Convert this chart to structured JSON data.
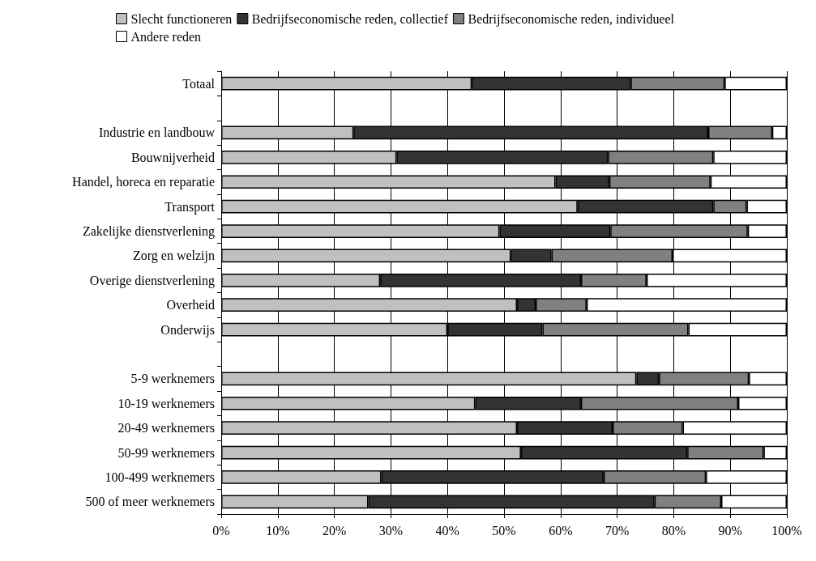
{
  "chart_data": {
    "type": "bar",
    "orientation": "horizontal",
    "stacked": true,
    "categories": [
      "Totaal",
      null,
      "Industrie en landbouw",
      "Bouwnijverheid",
      "Handel, horeca en reparatie",
      "Transport",
      "Zakelijke dienstverlening",
      "Zorg en welzijn",
      "Overige dienstverlening",
      "Overheid",
      "Onderwijs",
      null,
      "5-9 werknemers",
      "10-19 werknemers",
      "20-49 werknemers",
      "50-99 werknemers",
      "100-499 werknemers",
      "500 of meer werknemers"
    ],
    "series": [
      {
        "name": "Slecht functioneren",
        "color": "#c0c0c0",
        "values": [
          44.3,
          null,
          23.4,
          31.0,
          59.1,
          63.0,
          49.2,
          51.2,
          28.1,
          52.3,
          40.0,
          null,
          73.4,
          44.9,
          52.3,
          53.0,
          28.3,
          26.0
        ]
      },
      {
        "name": "Bedrijfseconomische reden, collectief",
        "color": "#333333",
        "values": [
          28.1,
          null,
          62.7,
          37.4,
          9.5,
          24.0,
          19.6,
          7.2,
          35.5,
          3.3,
          16.8,
          null,
          4.0,
          18.7,
          16.9,
          29.4,
          39.3,
          50.6
        ]
      },
      {
        "name": "Bedrijfseconomische reden, individueel",
        "color": "#808080",
        "values": [
          16.6,
          null,
          11.3,
          18.6,
          17.9,
          5.9,
          24.3,
          21.4,
          11.6,
          9.0,
          25.8,
          null,
          15.9,
          27.8,
          12.4,
          13.5,
          18.1,
          11.8
        ]
      },
      {
        "name": "Andere reden",
        "color": "#ffffff",
        "values": [
          11.0,
          null,
          2.6,
          13.0,
          13.5,
          7.1,
          6.9,
          20.2,
          24.8,
          35.4,
          17.4,
          null,
          6.7,
          8.6,
          18.4,
          4.1,
          14.3,
          11.6
        ]
      }
    ],
    "xlim": [
      0,
      100
    ],
    "xticks": [
      {
        "value": 0,
        "label": "0%"
      },
      {
        "value": 10,
        "label": "10%"
      },
      {
        "value": 20,
        "label": "20%"
      },
      {
        "value": 30,
        "label": "30%"
      },
      {
        "value": 40,
        "label": "40%"
      },
      {
        "value": 50,
        "label": "50%"
      },
      {
        "value": 60,
        "label": "60%"
      },
      {
        "value": 70,
        "label": "70%"
      },
      {
        "value": 80,
        "label": "80%"
      },
      {
        "value": 90,
        "label": "90%"
      },
      {
        "value": 100,
        "label": "100%"
      }
    ],
    "grid": "x",
    "legend": "top"
  }
}
